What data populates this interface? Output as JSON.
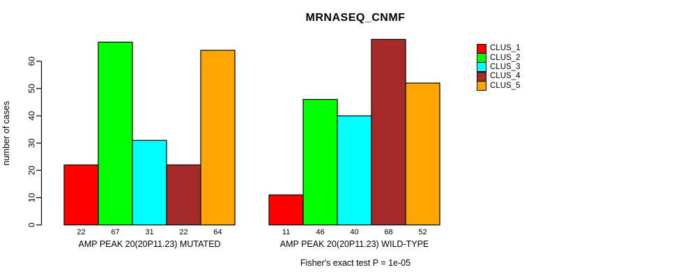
{
  "chart_data": {
    "type": "bar",
    "title": "MRNASEQ_CNMF",
    "ylabel": "number of cases",
    "xlabel": "",
    "ylim": [
      0,
      68
    ],
    "yticks": [
      0,
      10,
      20,
      30,
      40,
      50,
      60
    ],
    "grid": false,
    "legend_position": "right",
    "bar_borders": "#000000",
    "series": [
      {
        "name": "CLUS_1",
        "color": "#ff0000"
      },
      {
        "name": "CLUS_2",
        "color": "#00ff00"
      },
      {
        "name": "CLUS_3",
        "color": "#00ffff"
      },
      {
        "name": "CLUS_4",
        "color": "#a52a2a"
      },
      {
        "name": "CLUS_5",
        "color": "#ffa500"
      }
    ],
    "groups": [
      {
        "label": "AMP PEAK 20(20P11.23) MUTATED",
        "values": [
          22,
          67,
          31,
          22,
          64
        ]
      },
      {
        "label": "AMP PEAK 20(20P11.23) WILD-TYPE",
        "values": [
          11,
          46,
          40,
          68,
          52
        ]
      }
    ],
    "bar_value_labels": [
      [
        22,
        67,
        31,
        22,
        64
      ],
      [
        11,
        46,
        40,
        68,
        52
      ]
    ],
    "annotation": "Fisher's exact test P = 1e-05"
  }
}
